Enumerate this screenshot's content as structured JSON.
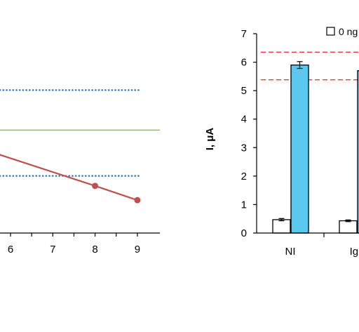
{
  "chart_data": [
    {
      "type": "line",
      "x_ticks": [
        "6",
        "7",
        "8",
        "9"
      ],
      "xlim": [
        5.4,
        9.5
      ],
      "ylim": [
        0,
        7
      ],
      "series": [
        {
          "color": "#c0504d",
          "x": [
            5.0,
            8,
            9
          ],
          "y": [
            3.1,
            1.65,
            1.15
          ]
        }
      ],
      "reference_lines": [
        {
          "style": "dotted",
          "color": "#2e75b6",
          "y": 5.0
        },
        {
          "style": "solid",
          "color": "#9bbb59",
          "y": 3.6
        },
        {
          "style": "dotted",
          "color": "#2e75b6",
          "y": 2.0
        }
      ]
    },
    {
      "type": "bar",
      "ylabel": "I, μA",
      "ylim": [
        0,
        7
      ],
      "y_ticks": [
        "0",
        "1",
        "2",
        "3",
        "4",
        "5",
        "6",
        "7"
      ],
      "categories": [
        "NI",
        "Igu"
      ],
      "legend": {
        "label": "0 ng",
        "placement": "top-right"
      },
      "series": [
        {
          "color": "#ffffff",
          "values": [
            0.47,
            0.43
          ],
          "errors": [
            0.04,
            0.03
          ]
        },
        {
          "color": "#5bc8f0",
          "values": [
            5.9,
            5.7
          ],
          "errors": [
            0.12,
            0.1
          ]
        }
      ],
      "reference_lines": [
        {
          "style": "dashed",
          "color": "#e04040",
          "y": 6.35
        },
        {
          "style": "dashed",
          "color": "#e04040",
          "y": 5.38
        }
      ]
    }
  ]
}
